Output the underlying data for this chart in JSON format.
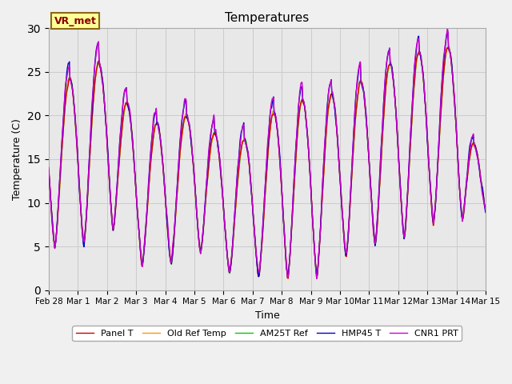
{
  "title": "Temperatures",
  "xlabel": "Time",
  "ylabel": "Temperature (C)",
  "ylim": [
    0,
    30
  ],
  "background_color": "#f0f0f0",
  "plot_bg_color": "#e8e8e8",
  "annotation_text": "VR_met",
  "annotation_bg": "#ffff99",
  "annotation_edge": "#8B6914",
  "legend_labels": [
    "Panel T",
    "Old Ref Temp",
    "AM25T Ref",
    "HMP45 T",
    "CNR1 PRT"
  ],
  "line_colors": [
    "#cc0000",
    "#ff9900",
    "#00cc00",
    "#0000cc",
    "#cc00cc"
  ],
  "line_widths": [
    1.0,
    1.0,
    1.0,
    1.0,
    1.0
  ],
  "xtick_labels": [
    "Feb 28",
    "Mar 1",
    "Mar 2",
    "Mar 3",
    "Mar 4",
    "Mar 5",
    "Mar 6",
    "Mar 7",
    "Mar 8",
    "Mar 9",
    "Mar 10",
    "Mar 11",
    "Mar 12",
    "Mar 13",
    "Mar 14",
    "Mar 15"
  ],
  "num_days": 15.0,
  "samples_per_day": 48,
  "daily_max": [
    22.5,
    25.0,
    26.5,
    19.2,
    19.0,
    20.5,
    17.0,
    17.5,
    21.5,
    22.0,
    22.5,
    24.5,
    26.5,
    27.5,
    28.0,
    10.5
  ],
  "daily_min": [
    5.0,
    4.5,
    8.0,
    3.0,
    2.5,
    5.0,
    2.0,
    1.5,
    1.5,
    1.0,
    3.5,
    5.0,
    5.5,
    7.5,
    8.0,
    8.0
  ],
  "hmp45_offsets": [
    2.0,
    1.5,
    2.5,
    1.5,
    1.8,
    1.5,
    2.0,
    1.5,
    1.8,
    1.5,
    2.0,
    2.5,
    1.5,
    2.0,
    1.5,
    1.5
  ],
  "cnr1_offsets": [
    1.5,
    1.2,
    2.0,
    1.0,
    1.5,
    1.2,
    1.5,
    1.0,
    1.5,
    1.2,
    1.5,
    2.0,
    1.2,
    1.5,
    1.2,
    1.2
  ],
  "grid_color": "#cccccc",
  "ytick_step": 5
}
